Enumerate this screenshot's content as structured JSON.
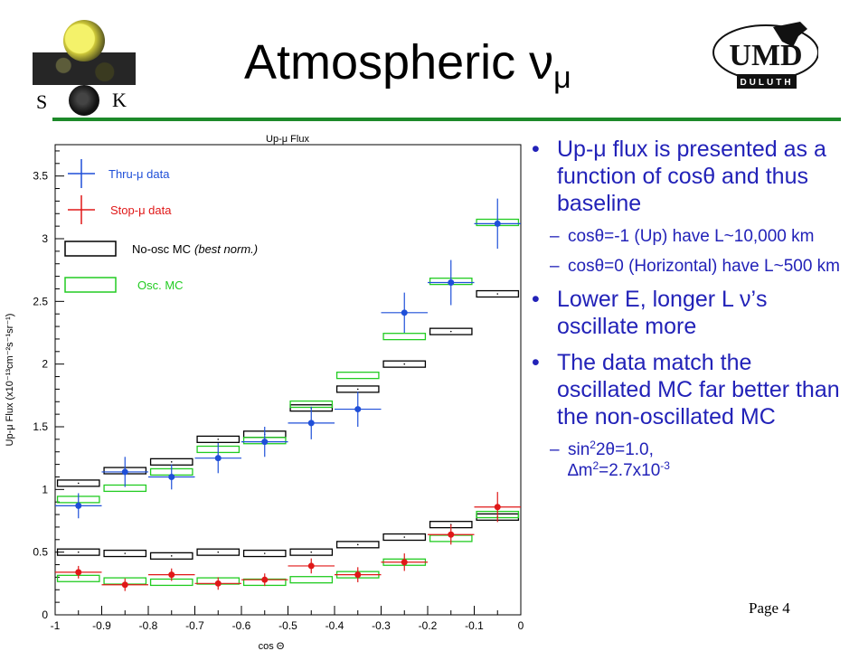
{
  "slide": {
    "title_main": "Atmospheric ν",
    "title_sub": "μ",
    "page": "Page 4",
    "logos": {
      "sk_left_letter": "S",
      "sk_right_letter": "K",
      "umd_text": "UMD",
      "umd_subtext": "DULUTH"
    },
    "bullets": [
      {
        "text": "Up-μ flux is presented as a function of cosθ and thus baseline",
        "subs": [
          "cosθ=-1 (Up) have L~10,000 km",
          "cosθ=0 (Horizontal) have L~500 km"
        ]
      },
      {
        "text": "Lower E, longer L ν’s oscillate more",
        "subs": []
      },
      {
        "text": "The data match the oscillated MC far better than the non-oscillated MC",
        "subs": []
      }
    ],
    "last_sub": {
      "a": "sin",
      "b": "2",
      "c": "2θ=1.0,",
      "d": "∆m",
      "e": "2",
      "f": "=2.7x10",
      "g": "-3"
    }
  },
  "colors": {
    "thru": "#1f4fd8",
    "stop": "#e01818",
    "noosc": "#000000",
    "osc": "#22cc22",
    "bullet_text": "#2222b8",
    "rule": "#1d8a2a"
  },
  "chart_data": {
    "type": "scatter",
    "title": "Up-μ Flux",
    "xlabel": "cos Θ",
    "ylabel": "Up-μ Flux (x10⁻¹³cm⁻²s⁻¹sr⁻¹)",
    "xlim": [
      -1,
      0
    ],
    "ylim": [
      0,
      3.75
    ],
    "xticks": [
      "-1",
      "-0.9",
      "-0.8",
      "-0.7",
      "-0.6",
      "-0.5",
      "-0.4",
      "-0.3",
      "-0.2",
      "-0.1",
      "0"
    ],
    "yticks": [
      "0",
      "0.5",
      "1",
      "1.5",
      "2",
      "2.5",
      "3",
      "3.5"
    ],
    "bins": [
      -0.95,
      -0.85,
      -0.75,
      -0.65,
      -0.55,
      -0.45,
      -0.35,
      -0.25,
      -0.15,
      -0.05
    ],
    "legend": {
      "thru": "Thru-μ data",
      "stop": "Stop-μ data",
      "noosc_main": "No-osc MC",
      "noosc_note": "(best norm.)",
      "osc": "Osc. MC"
    },
    "series": [
      {
        "name": "Thru-μ data",
        "values": [
          0.87,
          1.14,
          1.1,
          1.25,
          1.38,
          1.53,
          1.64,
          2.41,
          2.65,
          3.12
        ],
        "errors": [
          0.1,
          0.12,
          0.1,
          0.12,
          0.12,
          0.13,
          0.14,
          0.16,
          0.18,
          0.2
        ]
      },
      {
        "name": "Stop-μ data",
        "values": [
          0.34,
          0.24,
          0.32,
          0.25,
          0.28,
          0.39,
          0.32,
          0.42,
          0.64,
          0.86
        ],
        "errors": [
          0.05,
          0.05,
          0.05,
          0.05,
          0.05,
          0.06,
          0.06,
          0.07,
          0.08,
          0.12
        ]
      },
      {
        "name": "No-osc MC (best norm.) thru",
        "values": [
          1.05,
          1.15,
          1.22,
          1.4,
          1.44,
          1.65,
          1.8,
          2.0,
          2.26,
          2.56
        ]
      },
      {
        "name": "No-osc MC (best norm.) stop",
        "values": [
          0.5,
          0.49,
          0.47,
          0.5,
          0.49,
          0.5,
          0.56,
          0.62,
          0.72,
          0.78
        ]
      },
      {
        "name": "Osc. MC thru",
        "values": [
          0.92,
          1.01,
          1.14,
          1.32,
          1.39,
          1.68,
          1.91,
          2.22,
          2.66,
          3.13
        ]
      },
      {
        "name": "Osc. MC stop",
        "values": [
          0.29,
          0.27,
          0.26,
          0.27,
          0.26,
          0.28,
          0.32,
          0.42,
          0.61,
          0.8
        ]
      }
    ]
  }
}
